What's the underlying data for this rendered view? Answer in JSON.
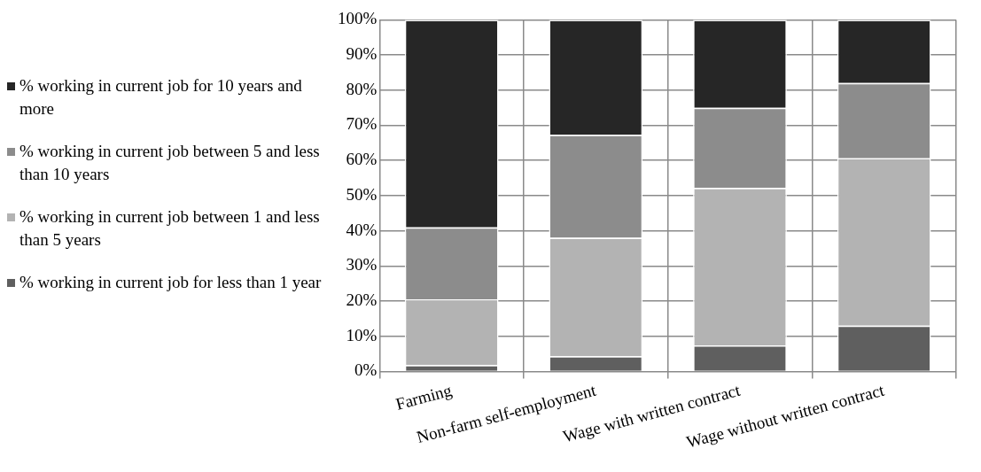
{
  "chart_data": {
    "type": "bar",
    "stacked": true,
    "categories": [
      "Farming",
      "Non-farm self-employment",
      "Wage with written contract",
      "Wage without written contract"
    ],
    "series": [
      {
        "name": "% working in current job for less than 1 year",
        "color": "#5f5f5f",
        "values": [
          1.8,
          4.3,
          7.4,
          13
        ]
      },
      {
        "name": "% working in current job between 1 and less than 5 years",
        "color": "#b3b3b3",
        "values": [
          18.7,
          33.7,
          44.8,
          47.6
        ]
      },
      {
        "name": "% working in current job between 5 and less than 10 years",
        "color": "#8c8c8c",
        "values": [
          20.5,
          29.3,
          22.8,
          21.4
        ]
      },
      {
        "name": "% working in current job for 10 years and more",
        "color": "#262626",
        "values": [
          59,
          32.7,
          25,
          18
        ]
      }
    ],
    "ylim": [
      0,
      100
    ],
    "yticks": [
      {
        "value": 0,
        "label": "0%"
      },
      {
        "value": 10,
        "label": "10%"
      },
      {
        "value": 20,
        "label": "20%"
      },
      {
        "value": 30,
        "label": "30%"
      },
      {
        "value": 40,
        "label": "40%"
      },
      {
        "value": 50,
        "label": "50%"
      },
      {
        "value": 60,
        "label": "60%"
      },
      {
        "value": 70,
        "label": "70%"
      },
      {
        "value": 80,
        "label": "80%"
      },
      {
        "value": 90,
        "label": "90%"
      },
      {
        "value": 100,
        "label": "100%"
      }
    ],
    "grid": true,
    "legend": "left"
  }
}
